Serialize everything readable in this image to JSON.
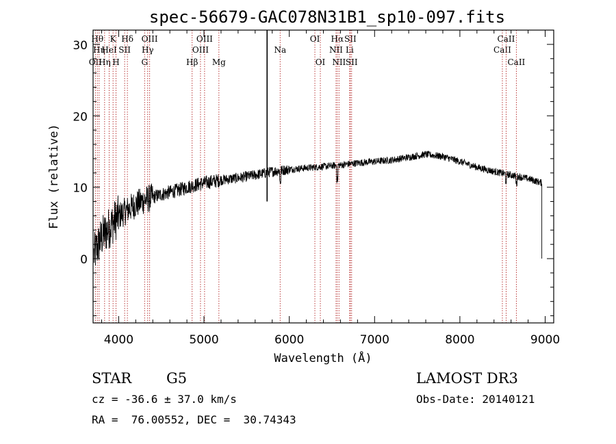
{
  "chart_data": {
    "type": "line",
    "title": "spec-56679-GAC078N31B1_sp10-097.fits",
    "xlabel": "Wavelength (Å)",
    "ylabel": "Flux (relative)",
    "xlim": [
      3700,
      9100
    ],
    "ylim": [
      -9,
      32
    ],
    "xticks": [
      4000,
      5000,
      6000,
      7000,
      8000,
      9000
    ],
    "xtick_labels": [
      "4000",
      "5000",
      "6000",
      "7000",
      "8000",
      "9000"
    ],
    "yticks": [
      0,
      10,
      20,
      30
    ],
    "ytick_labels": [
      "0",
      "10",
      "20",
      "30"
    ],
    "continuum": [
      [
        3710,
        0.5
      ],
      [
        3800,
        3
      ],
      [
        3900,
        4.5
      ],
      [
        4000,
        6
      ],
      [
        4100,
        6.8
      ],
      [
        4200,
        7.6
      ],
      [
        4300,
        8.2
      ],
      [
        4400,
        8.6
      ],
      [
        4500,
        9.0
      ],
      [
        4600,
        9.3
      ],
      [
        4700,
        9.6
      ],
      [
        4800,
        10.0
      ],
      [
        4900,
        10.3
      ],
      [
        5000,
        10.6
      ],
      [
        5200,
        11.0
      ],
      [
        5400,
        11.3
      ],
      [
        5600,
        11.7
      ],
      [
        5800,
        12.2
      ],
      [
        6000,
        12.5
      ],
      [
        6200,
        12.7
      ],
      [
        6400,
        12.9
      ],
      [
        6600,
        13.1
      ],
      [
        6800,
        13.4
      ],
      [
        7000,
        13.6
      ],
      [
        7200,
        13.8
      ],
      [
        7400,
        14.2
      ],
      [
        7600,
        14.6
      ],
      [
        7800,
        14.3
      ],
      [
        8000,
        13.6
      ],
      [
        8200,
        12.8
      ],
      [
        8400,
        12.2
      ],
      [
        8600,
        11.7
      ],
      [
        8800,
        11.2
      ],
      [
        8960,
        10.6
      ]
    ],
    "spike": {
      "x": 5740,
      "y_top": 32,
      "y_bottom": 8
    },
    "lines": [
      {
        "wave": 3727,
        "label": "OII",
        "row": 2
      },
      {
        "wave": 3750,
        "label": "Hθ",
        "row": 0
      },
      {
        "wave": 3771,
        "label": "Hη",
        "row": 1
      },
      {
        "wave": 3835,
        "label": "Hη",
        "row": 2
      },
      {
        "wave": 3889,
        "label": "HeI",
        "row": 1
      },
      {
        "wave": 3934,
        "label": "K",
        "row": 0
      },
      {
        "wave": 3969,
        "label": "H",
        "row": 2
      },
      {
        "wave": 4070,
        "label": "SII",
        "row": 1
      },
      {
        "wave": 4102,
        "label": "Hδ",
        "row": 0
      },
      {
        "wave": 4304,
        "label": "G",
        "row": 2
      },
      {
        "wave": 4340,
        "label": "Hγ",
        "row": 1
      },
      {
        "wave": 4363,
        "label": "OIII",
        "row": 0
      },
      {
        "wave": 4861,
        "label": "Hβ",
        "row": 2
      },
      {
        "wave": 4959,
        "label": "OIII",
        "row": 1
      },
      {
        "wave": 5007,
        "label": "OIII",
        "row": 0
      },
      {
        "wave": 5175,
        "label": "Mg",
        "row": 2
      },
      {
        "wave": 5893,
        "label": "Na",
        "row": 1
      },
      {
        "wave": 6300,
        "label": "OI",
        "row": 0
      },
      {
        "wave": 6364,
        "label": "OI",
        "row": 2
      },
      {
        "wave": 6548,
        "label": "NII",
        "row": 1
      },
      {
        "wave": 6563,
        "label": "Hα",
        "row": 0
      },
      {
        "wave": 6583,
        "label": "NII",
        "row": 2
      },
      {
        "wave": 6708,
        "label": "Li",
        "row": 1
      },
      {
        "wave": 6716,
        "label": "SII",
        "row": 0
      },
      {
        "wave": 6731,
        "label": "SII",
        "row": 2
      },
      {
        "wave": 8498,
        "label": "CaII",
        "row": 1
      },
      {
        "wave": 8542,
        "label": "CaII",
        "row": 0
      },
      {
        "wave": 8662,
        "label": "CaII",
        "row": 2
      }
    ]
  },
  "footer": {
    "class_label": "STAR",
    "subclass": "G5",
    "survey": "LAMOST DR3",
    "cz": "cz = -36.6 ± 37.0 km/s",
    "obs_date": "Obs-Date: 20140121",
    "coords": "RA =  76.00552, DEC =  30.74343"
  }
}
